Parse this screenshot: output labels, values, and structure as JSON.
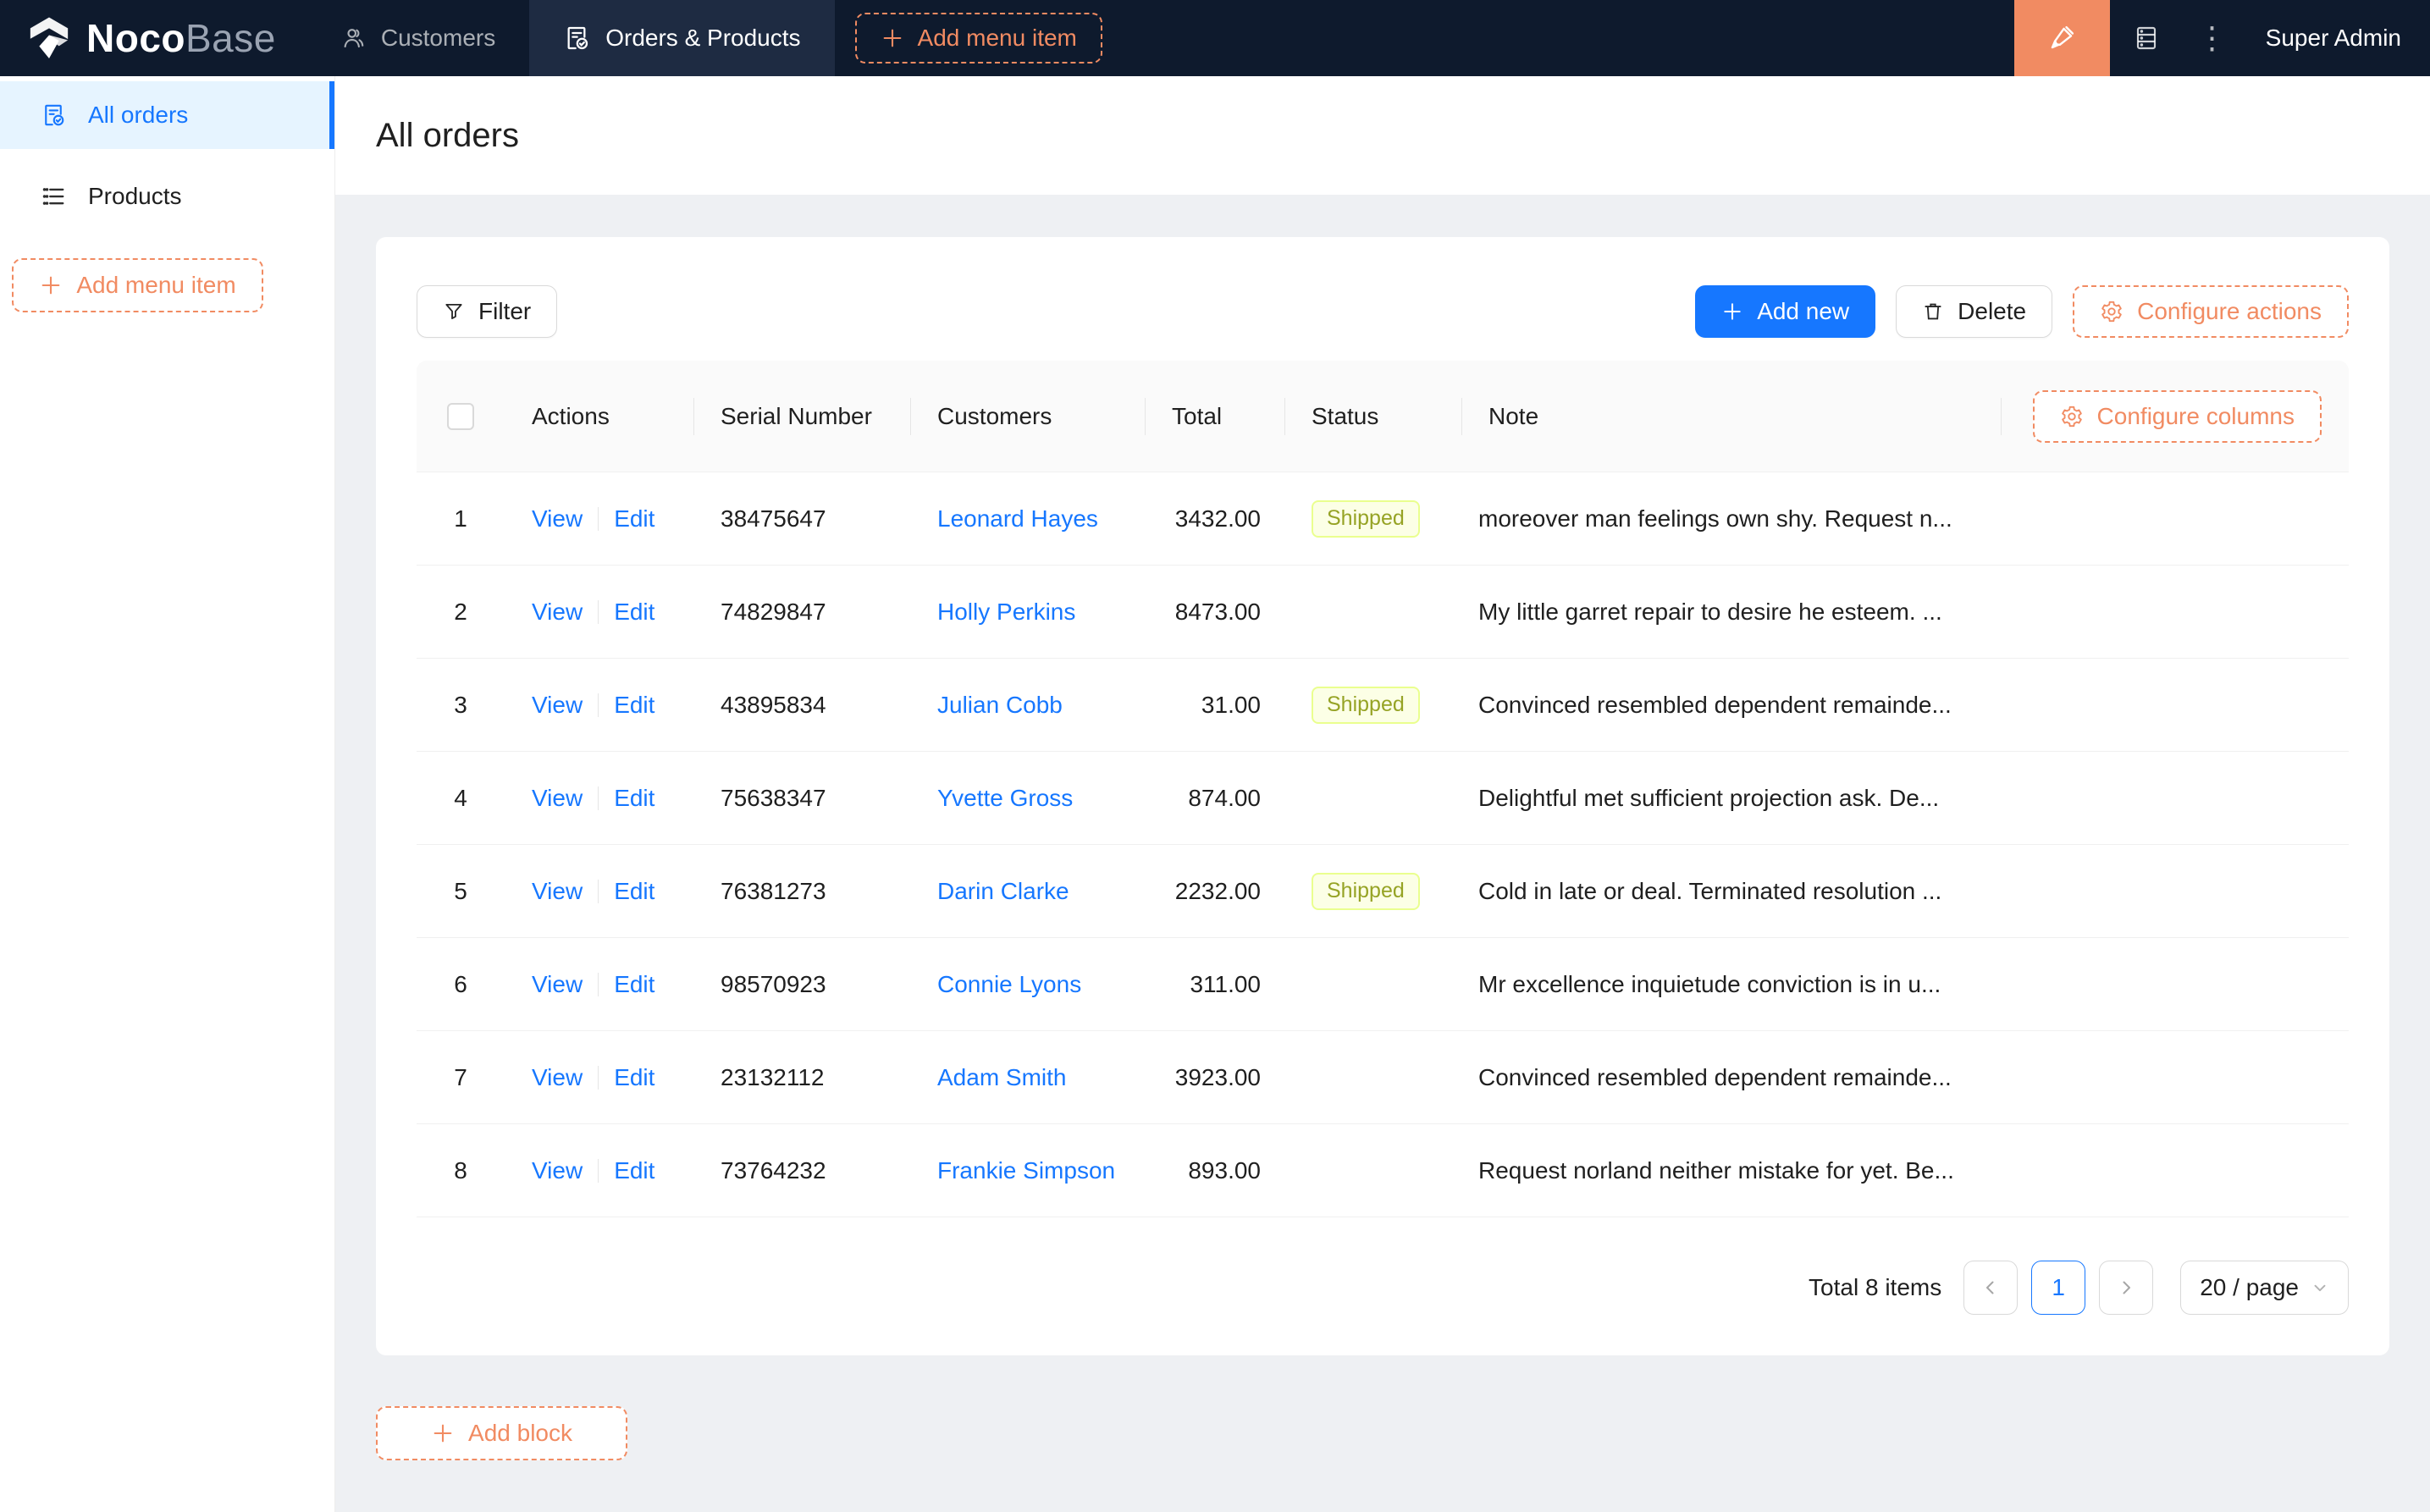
{
  "header": {
    "logo": {
      "bold": "Noco",
      "light": "Base"
    },
    "nav": [
      {
        "label": "Customers"
      },
      {
        "label": "Orders & Products"
      }
    ],
    "add_menu_item_label": "Add menu item",
    "user": "Super Admin",
    "icons": [
      "user-icon",
      "file-done-icon",
      "plus-icon",
      "highlighter-icon",
      "database-icon",
      "kebab-icon"
    ]
  },
  "sidebar": {
    "items": [
      {
        "label": "All orders",
        "icon": "file-done-icon",
        "active": true
      },
      {
        "label": "Products",
        "icon": "list-icon",
        "active": false
      }
    ],
    "add_menu_item_label": "Add menu item"
  },
  "page": {
    "title": "All orders"
  },
  "toolbar": {
    "filter_label": "Filter",
    "add_new_label": "Add new",
    "delete_label": "Delete",
    "configure_actions_label": "Configure actions"
  },
  "table": {
    "columns": [
      "Actions",
      "Serial Number",
      "Customers",
      "Total",
      "Status",
      "Note"
    ],
    "configure_columns_label": "Configure columns",
    "view_label": "View",
    "edit_label": "Edit",
    "rows": [
      {
        "index": "1",
        "serial": "38475647",
        "customer": "Leonard Hayes",
        "total": "3432.00",
        "status": "Shipped",
        "note": "moreover man feelings own shy. Request n..."
      },
      {
        "index": "2",
        "serial": "74829847",
        "customer": "Holly Perkins",
        "total": "8473.00",
        "status": "",
        "note": "My little garret repair to desire he esteem. ..."
      },
      {
        "index": "3",
        "serial": "43895834",
        "customer": "Julian Cobb",
        "total": "31.00",
        "status": "Shipped",
        "note": "Convinced resembled dependent remainde..."
      },
      {
        "index": "4",
        "serial": "75638347",
        "customer": "Yvette Gross",
        "total": "874.00",
        "status": "",
        "note": "Delightful met sufficient projection ask. De..."
      },
      {
        "index": "5",
        "serial": "76381273",
        "customer": "Darin Clarke",
        "total": "2232.00",
        "status": "Shipped",
        "note": "Cold in late or deal. Terminated resolution ..."
      },
      {
        "index": "6",
        "serial": "98570923",
        "customer": "Connie Lyons",
        "total": "311.00",
        "status": "",
        "note": "Mr excellence inquietude conviction is in u..."
      },
      {
        "index": "7",
        "serial": "23132112",
        "customer": "Adam Smith",
        "total": "3923.00",
        "status": "",
        "note": "Convinced resembled dependent remainde..."
      },
      {
        "index": "8",
        "serial": "73764232",
        "customer": "Frankie Simpson",
        "total": "893.00",
        "status": "",
        "note": "Request norland neither mistake for yet. Be..."
      }
    ]
  },
  "pagination": {
    "total_label": "Total 8 items",
    "current_page": "1",
    "page_size_label": "20 / page"
  },
  "add_block_label": "Add block",
  "colors": {
    "header_bg": "#0e1a2d",
    "header_tab_bg": "#1e2b42",
    "accent_orange": "#f18b62",
    "primary_blue": "#1677ff",
    "active_menu_bg": "#e6f4ff",
    "badge_bg": "#fcffe6",
    "badge_border": "#eaff8f",
    "badge_text": "#96a325",
    "content_bg": "#eef0f3"
  }
}
